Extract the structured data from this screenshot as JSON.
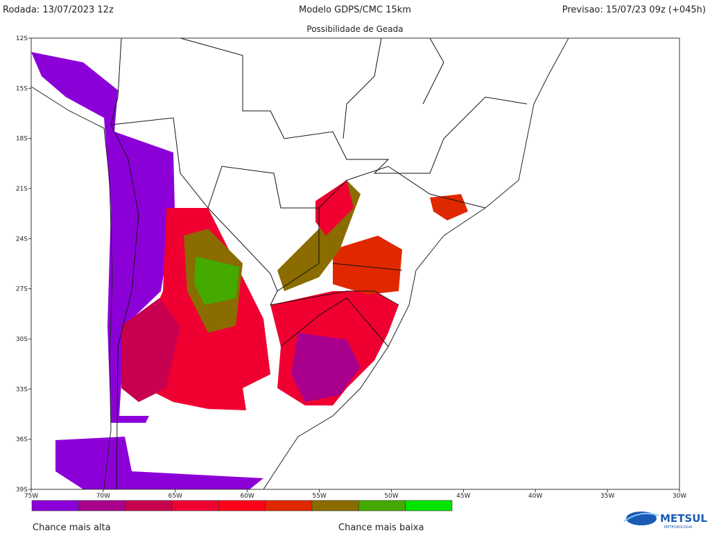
{
  "header": {
    "run": "Rodada: 13/07/2023 12z",
    "model": "Modelo GDPS/CMC 15km",
    "forecast": "Previsao: 15/07/23 09z (+045h)",
    "subtitle": "Possibilidade de Geada"
  },
  "map": {
    "lat_labels": [
      "12S",
      "15S",
      "18S",
      "21S",
      "24S",
      "27S",
      "30S",
      "33S",
      "36S",
      "39S"
    ],
    "lon_labels": [
      "75W",
      "70W",
      "65W",
      "60W",
      "55W",
      "50W",
      "45W",
      "40W",
      "35W",
      "30W"
    ]
  },
  "legend": {
    "colors": [
      "#8c00d8",
      "#a8008c",
      "#c80050",
      "#f00030",
      "#ff0018",
      "#e02800",
      "#8a6c00",
      "#44aa00",
      "#00e400"
    ],
    "high_label": "Chance mais alta",
    "low_label": "Chance mais baixa"
  },
  "logo": {
    "name": "METSUL",
    "tagline": "METEOROLOGIA"
  }
}
